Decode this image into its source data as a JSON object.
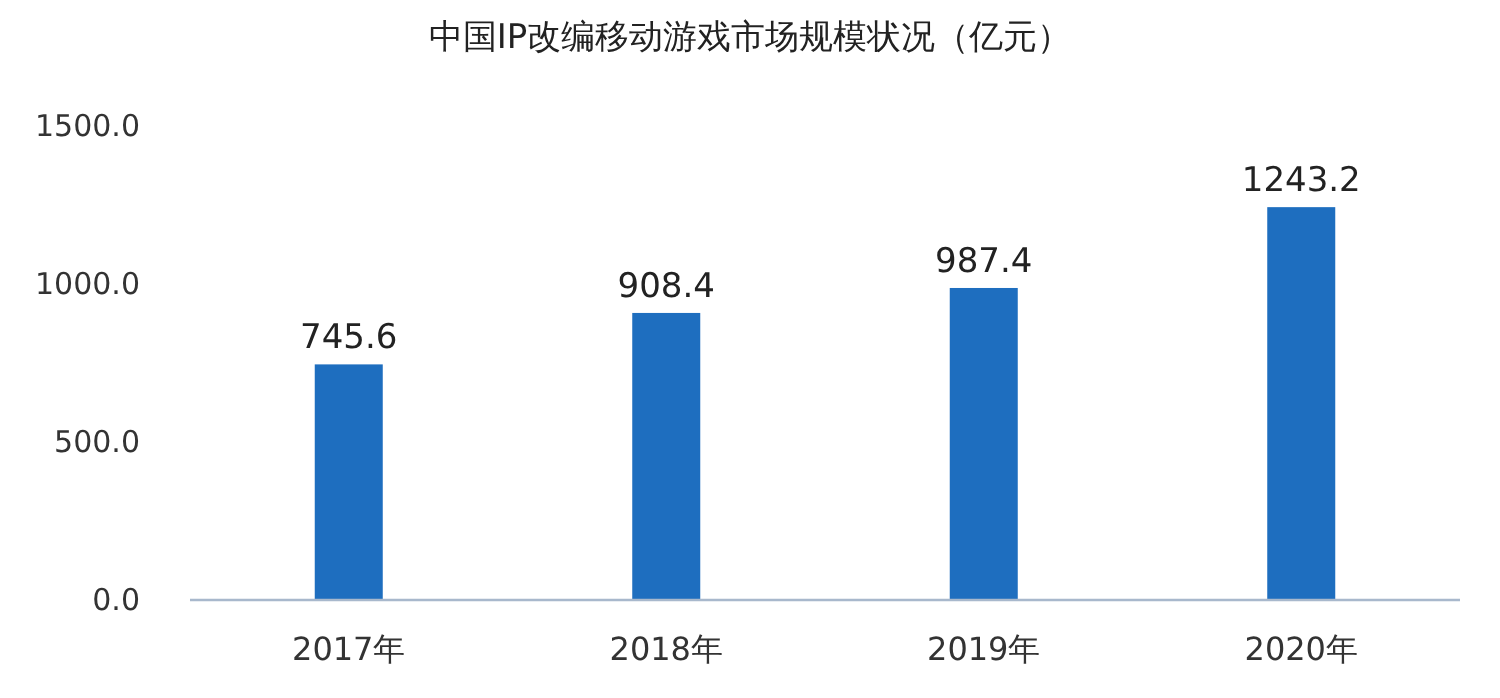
{
  "chart_data": {
    "type": "bar",
    "title": "中国IP改编移动游戏市场规模状况（亿元）",
    "categories": [
      "2017年",
      "2018年",
      "2019年",
      "2020年"
    ],
    "values": [
      745.6,
      908.4,
      987.4,
      1243.2
    ],
    "color": "#1e6ebf",
    "ylim": [
      0,
      1500
    ],
    "yticks": [
      {
        "value": 0,
        "label": "0.0"
      },
      {
        "value": 500,
        "label": "500.0"
      },
      {
        "value": 1000,
        "label": "1000.0"
      },
      {
        "value": 1500,
        "label": "1500.0"
      }
    ],
    "data_labels": true
  }
}
